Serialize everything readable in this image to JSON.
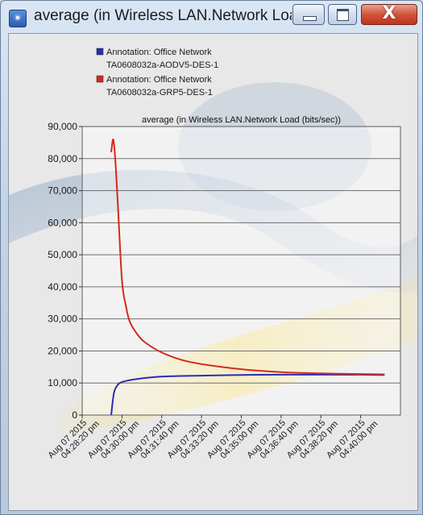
{
  "window": {
    "title": "average (in Wireless LAN.Network Loa...",
    "icon": "app-icon",
    "controls": [
      "minimize-icon",
      "maximize-icon",
      "close-icon"
    ],
    "close_glyph": "X"
  },
  "chart_data": {
    "type": "line",
    "title": "average (in Wireless LAN.Network Load (bits/sec))",
    "xlabel": "",
    "ylabel": "",
    "ylim": [
      0,
      90000
    ],
    "yticks": [
      "0",
      "10,000",
      "20,000",
      "30,000",
      "40,000",
      "50,000",
      "60,000",
      "70,000",
      "80,000",
      "90,000"
    ],
    "xticks": [
      "Aug 07 2015 04:28:20 pm",
      "Aug 07 2015 04:30:00 pm",
      "Aug 07 2015 04:31:40 pm",
      "Aug 07 2015 04:33:20 pm",
      "Aug 07 2015 04:35:00 pm",
      "Aug 07 2015 04:36:40 pm",
      "Aug 07 2015 04:38:20 pm",
      "Aug 07 2015 04:40:00 pm"
    ],
    "xlim": [
      "Aug 07 2015 04:28:20 pm",
      "Aug 07 2015 04:41:40 pm"
    ],
    "grid": true,
    "legend_position": "top-left",
    "series": [
      {
        "name": "Annotation: Office Network TA0608032a-AODV5-DES-1",
        "legend_line1": "Annotation: Office Network",
        "legend_line2": "TA0608032a-AODV5-DES-1",
        "color": "#2b2bb8",
        "x": [
          "04:29:33 pm",
          "04:29:40 pm",
          "04:29:50 pm",
          "04:30:00 pm",
          "04:30:20 pm",
          "04:30:40 pm",
          "04:31:00 pm",
          "04:31:40 pm",
          "04:32:30 pm",
          "04:33:20 pm",
          "04:35:00 pm",
          "04:36:40 pm",
          "04:38:20 pm",
          "04:40:00 pm",
          "04:41:00 pm"
        ],
        "y": [
          0,
          7000,
          9500,
          10300,
          10900,
          11300,
          11600,
          12000,
          12200,
          12300,
          12500,
          12600,
          12600,
          12600,
          12500
        ]
      },
      {
        "name": "Annotation: Office Network TA0608032a-GRP5-DES-1",
        "legend_line1": "Annotation: Office Network",
        "legend_line2": "TA0608032a-GRP5-DES-1",
        "color": "#d42a1c",
        "x": [
          "04:29:33 pm",
          "04:29:38 pm",
          "04:29:43 pm",
          "04:29:50 pm",
          "04:30:00 pm",
          "04:30:10 pm",
          "04:30:20 pm",
          "04:30:40 pm",
          "04:31:00 pm",
          "04:31:40 pm",
          "04:32:30 pm",
          "04:33:20 pm",
          "04:35:00 pm",
          "04:36:40 pm",
          "04:38:20 pm",
          "04:40:00 pm",
          "04:41:00 pm"
        ],
        "y": [
          82000,
          86000,
          80000,
          65000,
          42000,
          34000,
          29000,
          25000,
          22500,
          19500,
          17200,
          15900,
          14300,
          13400,
          13000,
          12800,
          12700
        ]
      }
    ]
  }
}
